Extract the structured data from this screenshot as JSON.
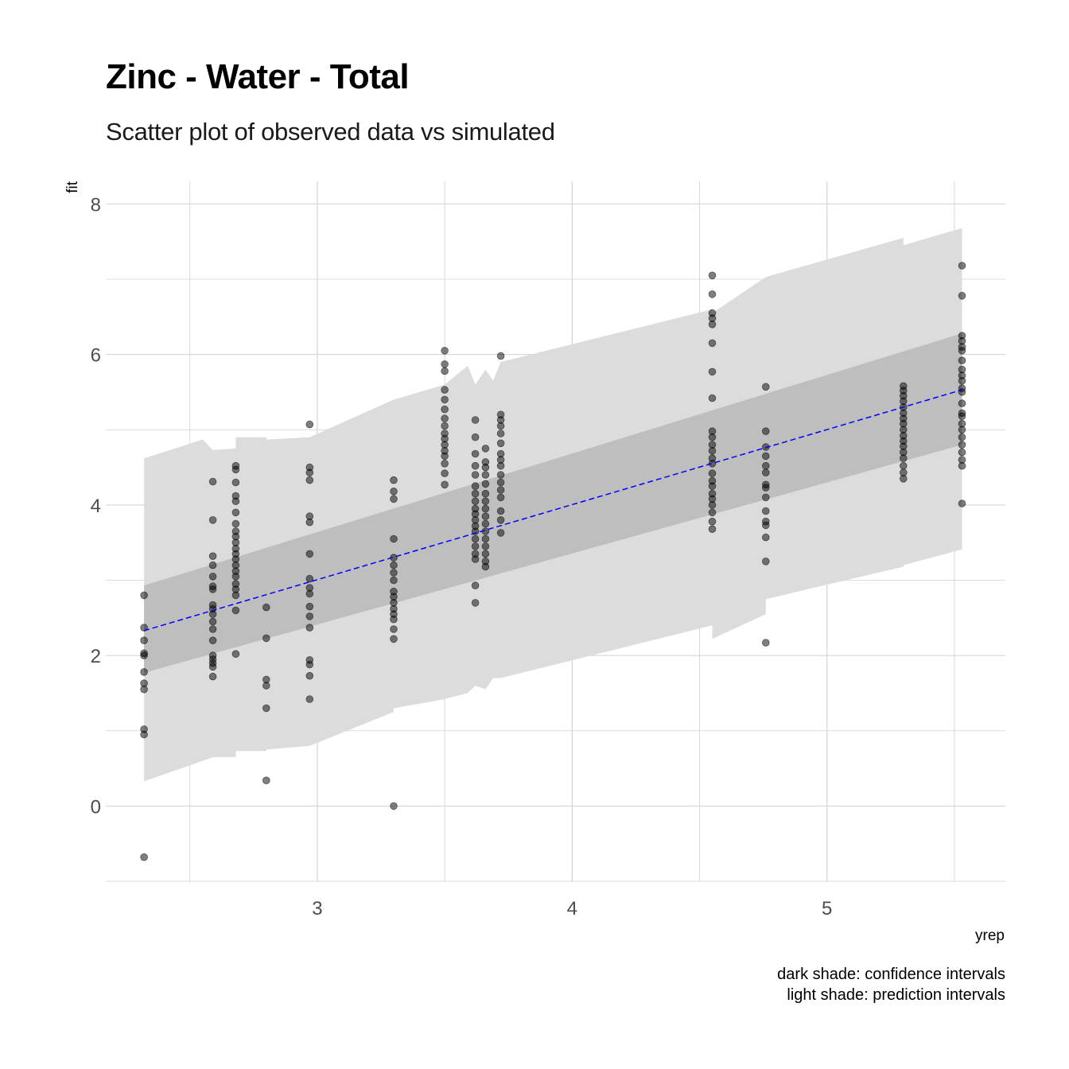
{
  "chart_data": {
    "type": "scatter",
    "title": "Zinc - Water - Total",
    "subtitle": "Scatter plot of observed data vs simulated",
    "xlabel": "yrep",
    "ylabel": "fit",
    "caption_lines": [
      "dark shade: confidence intervals",
      "light shade: prediction intervals"
    ],
    "xlim": [
      2.17,
      5.7
    ],
    "ylim": [
      -1.0,
      8.3
    ],
    "x_ticks": [
      3,
      4,
      5
    ],
    "y_ticks": [
      0,
      2,
      4,
      6,
      8
    ],
    "x_tick_labels": [
      "3",
      "4",
      "5"
    ],
    "y_tick_labels": [
      "0",
      "2",
      "4",
      "6",
      "8"
    ],
    "grid": true,
    "colors": {
      "points": "#000000",
      "fit_line": "#0000ff",
      "confidence_band": "#bebebe",
      "prediction_band": "#dcdcdc",
      "grid": "#d0d0d0"
    },
    "fit_line": {
      "x": [
        2.32,
        5.53
      ],
      "y": [
        2.33,
        5.53
      ],
      "style": "dashed"
    },
    "confidence_band": {
      "x": [
        2.32,
        5.53
      ],
      "lower": [
        1.77,
        4.8
      ],
      "upper": [
        2.93,
        6.28
      ]
    },
    "prediction_band": {
      "x": [
        2.32,
        2.55,
        2.59,
        2.68,
        2.68,
        2.8,
        2.8,
        2.97,
        3.3,
        3.3,
        3.5,
        3.59,
        3.62,
        3.66,
        3.69,
        3.72,
        4.55,
        4.55,
        4.76,
        4.76,
        5.3,
        5.3,
        5.53
      ],
      "upper": [
        4.62,
        4.87,
        4.73,
        4.75,
        4.9,
        4.9,
        4.87,
        4.9,
        5.4,
        5.4,
        5.6,
        5.85,
        5.6,
        5.8,
        5.65,
        5.9,
        6.6,
        6.55,
        7.03,
        7.03,
        7.55,
        7.45,
        7.68
      ],
      "lower": [
        0.33,
        0.6,
        0.65,
        0.65,
        0.73,
        0.73,
        0.75,
        0.8,
        1.25,
        1.3,
        1.42,
        1.5,
        1.6,
        1.55,
        1.7,
        1.7,
        2.4,
        2.22,
        2.55,
        2.75,
        3.18,
        3.2,
        3.41
      ]
    },
    "points": [
      {
        "x": 2.32,
        "y": [
          -0.68,
          0.95,
          1.02,
          1.55,
          1.63,
          1.78,
          2.0,
          2.03,
          2.2,
          2.37,
          2.8
        ]
      },
      {
        "x": 2.59,
        "y": [
          1.72,
          1.85,
          1.9,
          1.95,
          2.0,
          2.2,
          2.35,
          2.45,
          2.55,
          2.62,
          2.67,
          2.88,
          2.92,
          3.05,
          3.2,
          3.32,
          3.8,
          4.31
        ]
      },
      {
        "x": 2.68,
        "y": [
          2.02,
          2.6,
          2.8,
          2.88,
          2.95,
          3.05,
          3.12,
          3.2,
          3.28,
          3.35,
          3.42,
          3.5,
          3.58,
          3.65,
          3.75,
          3.9,
          4.05,
          4.12,
          4.3,
          4.47,
          4.52
        ]
      },
      {
        "x": 2.8,
        "y": [
          0.34,
          1.3,
          1.6,
          1.68,
          2.23,
          2.64
        ]
      },
      {
        "x": 2.97,
        "y": [
          1.42,
          1.73,
          1.88,
          1.94,
          2.37,
          2.52,
          2.65,
          2.82,
          2.9,
          3.02,
          3.35,
          3.77,
          3.85,
          4.33,
          4.43,
          4.5,
          5.07
        ]
      },
      {
        "x": 3.3,
        "y": [
          0.0,
          2.22,
          2.35,
          2.48,
          2.55,
          2.62,
          2.7,
          2.78,
          2.85,
          3.0,
          3.1,
          3.2,
          3.3,
          3.55,
          4.08,
          4.18,
          4.33
        ]
      },
      {
        "x": 3.5,
        "y": [
          4.27,
          4.42,
          4.55,
          4.65,
          4.72,
          4.8,
          4.88,
          4.95,
          5.05,
          5.15,
          5.27,
          5.4,
          5.53,
          5.78,
          5.87,
          6.05
        ]
      },
      {
        "x": 3.62,
        "y": [
          2.7,
          2.93,
          3.28,
          3.35,
          3.45,
          3.55,
          3.65,
          3.72,
          3.8,
          3.88,
          3.95,
          4.05,
          4.15,
          4.25,
          4.4,
          4.52,
          4.68,
          4.9,
          5.13
        ]
      },
      {
        "x": 3.66,
        "y": [
          3.18,
          3.25,
          3.35,
          3.45,
          3.55,
          3.65,
          3.75,
          3.85,
          3.95,
          4.05,
          4.15,
          4.28,
          4.4,
          4.5,
          4.57,
          4.75
        ]
      },
      {
        "x": 3.72,
        "y": [
          3.63,
          3.8,
          3.92,
          4.1,
          4.2,
          4.3,
          4.4,
          4.52,
          4.6,
          4.68,
          4.82,
          4.95,
          5.05,
          5.13,
          5.2,
          5.98
        ]
      },
      {
        "x": 4.55,
        "y": [
          3.68,
          3.78,
          3.9,
          4.0,
          4.08,
          4.15,
          4.25,
          4.32,
          4.42,
          4.55,
          4.62,
          4.72,
          4.8,
          4.9,
          4.98,
          5.42,
          5.77,
          6.15,
          6.4,
          6.48,
          6.55,
          6.8,
          7.05
        ]
      },
      {
        "x": 4.76,
        "y": [
          2.17,
          3.25,
          3.57,
          3.73,
          3.78,
          3.92,
          4.1,
          4.23,
          4.27,
          4.43,
          4.52,
          4.65,
          4.77,
          4.98,
          5.57
        ]
      },
      {
        "x": 5.3,
        "y": [
          4.35,
          4.43,
          4.52,
          4.62,
          4.7,
          4.78,
          4.85,
          4.92,
          5.0,
          5.08,
          5.15,
          5.22,
          5.3,
          5.38,
          5.45,
          5.52,
          5.58
        ]
      },
      {
        "x": 5.53,
        "y": [
          4.02,
          4.52,
          4.6,
          4.7,
          4.8,
          4.9,
          5.0,
          5.08,
          5.18,
          5.22,
          5.35,
          5.5,
          5.55,
          5.65,
          5.72,
          5.8,
          5.92,
          6.05,
          6.1,
          6.18,
          6.25,
          6.78,
          7.18
        ]
      }
    ]
  }
}
